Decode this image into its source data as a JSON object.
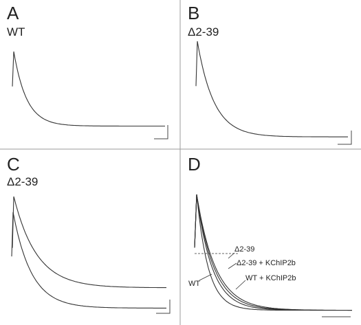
{
  "chart_data": [
    {
      "type": "line",
      "panel": "A",
      "label": "WT",
      "series": [
        {
          "name": "WT",
          "peak": 1.0,
          "tau": 0.085,
          "plateau": 0.04
        }
      ],
      "ylim": [
        0,
        1
      ],
      "xlim": [
        0,
        1
      ]
    },
    {
      "type": "line",
      "panel": "B",
      "label": "Δ2-39",
      "series": [
        {
          "name": "Δ2-39",
          "peak": 1.0,
          "tau": 0.11,
          "plateau": 0.04
        }
      ],
      "ylim": [
        0,
        1
      ],
      "xlim": [
        0,
        1
      ]
    },
    {
      "type": "line",
      "panel": "C",
      "label": "Δ2-39",
      "series": [
        {
          "peak": 1.0,
          "tau": 0.15,
          "plateau": 0.2
        },
        {
          "peak": 0.8,
          "tau": 0.12,
          "plateau": 0.02
        }
      ],
      "ylim": [
        0,
        1
      ],
      "xlim": [
        0,
        1
      ]
    },
    {
      "type": "line",
      "panel": "D",
      "series": [
        {
          "name": "WT",
          "tau": 0.075,
          "plateau": 0.02
        },
        {
          "name": "WT + KChIP2b",
          "tau": 0.1,
          "plateau": 0.02
        },
        {
          "name": "Δ2-39 + KChIP2b",
          "tau": 0.112,
          "plateau": 0.02
        },
        {
          "name": "Δ2-39",
          "tau": 0.122,
          "plateau": 0.02
        }
      ],
      "ylim": [
        0,
        1
      ],
      "xlim": [
        0,
        1
      ]
    }
  ]
}
